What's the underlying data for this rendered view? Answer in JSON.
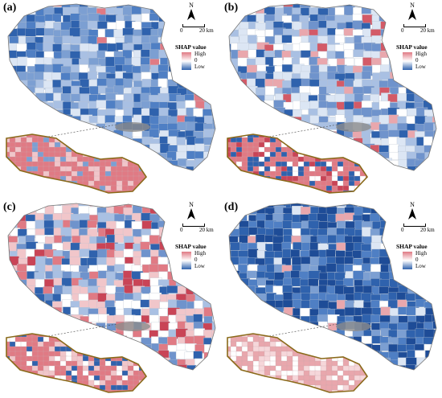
{
  "panels": [
    {
      "label": "(a)",
      "theme": "mostly-low"
    },
    {
      "label": "(b)",
      "theme": "mixed-pale"
    },
    {
      "label": "(c)",
      "theme": "mixed-high"
    },
    {
      "label": "(d)",
      "theme": "strong-low"
    }
  ],
  "north_arrow": {
    "letter": "N"
  },
  "scale_bar": {
    "start": "0",
    "end": "20 km"
  },
  "legend": {
    "title": "SHAP value",
    "high": "High",
    "zero": "0",
    "low": "Low"
  },
  "colors": {
    "high": "#e07a84",
    "zero": "#ffffff",
    "low": "#2f62ad",
    "boundary": "#8a6a1a"
  }
}
